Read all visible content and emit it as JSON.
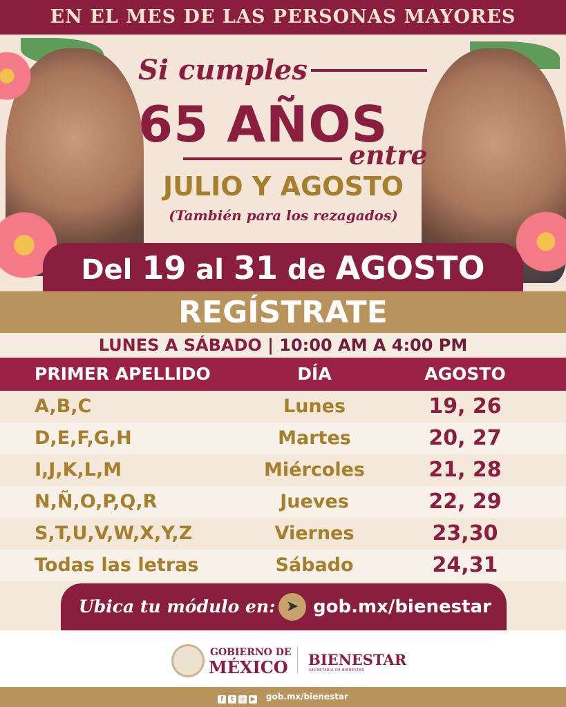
{
  "banner": "EN EL MES DE LAS PERSONAS MAYORES",
  "hero": {
    "si_cumples": "Si cumples",
    "age": "65 AÑOS",
    "entre": "entre",
    "months": "JULIO Y AGOSTO",
    "note": "(También para los rezagados)"
  },
  "date": {
    "del": "Del",
    "start": "19",
    "al": "al",
    "end": "31",
    "de": "de",
    "month": "AGOSTO"
  },
  "register": "REGÍSTRATE",
  "hours": {
    "days": "LUNES A SÁBADO",
    "sep": "|",
    "time": "10:00 AM A 4:00 PM"
  },
  "table": {
    "headers": [
      "PRIMER APELLIDO",
      "DÍA",
      "AGOSTO"
    ],
    "rows": [
      {
        "letters": "A,B,C",
        "day": "Lunes",
        "dates": "19, 26"
      },
      {
        "letters": "D,E,F,G,H",
        "day": "Martes",
        "dates": "20, 27"
      },
      {
        "letters": "I,J,K,L,M",
        "day": "Miércoles",
        "dates": "21, 28"
      },
      {
        "letters": "N,Ñ,O,P,Q,R",
        "day": "Jueves",
        "dates": "22, 29"
      },
      {
        "letters": "S,T,U,V,W,X,Y,Z",
        "day": "Viernes",
        "dates": "23,30"
      },
      {
        "letters": "Todas las letras",
        "day": "Sábado",
        "dates": "24,31"
      }
    ]
  },
  "module": {
    "label": "Ubica tu módulo en:",
    "url": "gob.mx/bienestar",
    "icon": "cursor-icon"
  },
  "logos": {
    "gob_line1": "GOBIERNO DE",
    "gob_line2": "MÉXICO",
    "bienestar": "BIENESTAR",
    "secretaria": "SECRETARÍA DE BIENESTAR"
  },
  "footer": {
    "url": "gob.mx/bienestar",
    "icons": [
      "facebook-icon",
      "twitter-icon",
      "instagram-icon",
      "youtube-icon"
    ]
  },
  "colors": {
    "maroon": "#8a1e3f",
    "gold": "#b9935c",
    "gold_text": "#a57f2c",
    "cream": "#f3e6d8"
  }
}
